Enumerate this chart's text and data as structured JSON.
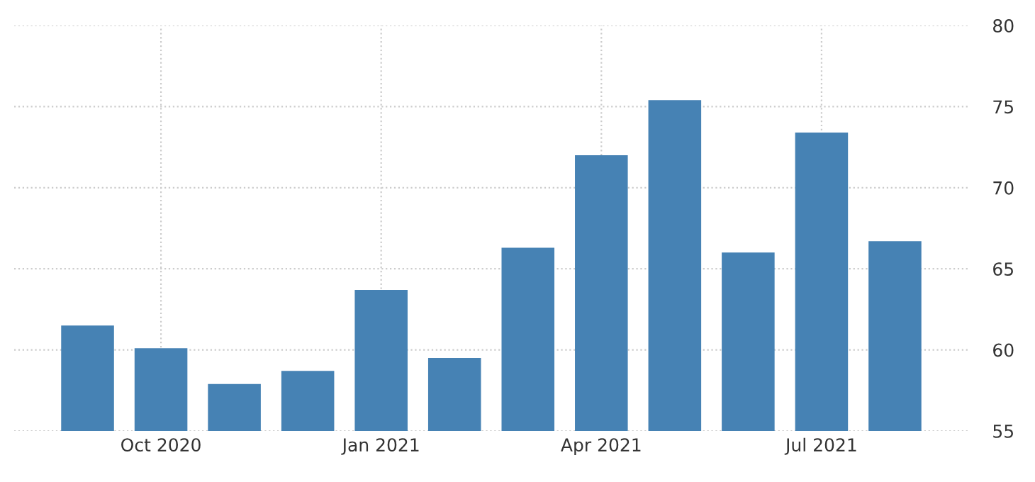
{
  "chart_data": {
    "type": "bar",
    "categories": [
      null,
      "Oct 2020",
      null,
      null,
      "Jan 2021",
      null,
      null,
      "Apr 2021",
      null,
      null,
      "Jul 2021",
      null
    ],
    "values": [
      61.5,
      60.1,
      57.9,
      58.7,
      63.7,
      59.5,
      66.3,
      72.0,
      75.4,
      66.0,
      73.4,
      66.7
    ],
    "color": "#4682b4",
    "ylim": [
      55,
      80
    ],
    "yticks": [
      55,
      60,
      65,
      70,
      75,
      80
    ],
    "grid": true,
    "line_style": "dotted"
  }
}
